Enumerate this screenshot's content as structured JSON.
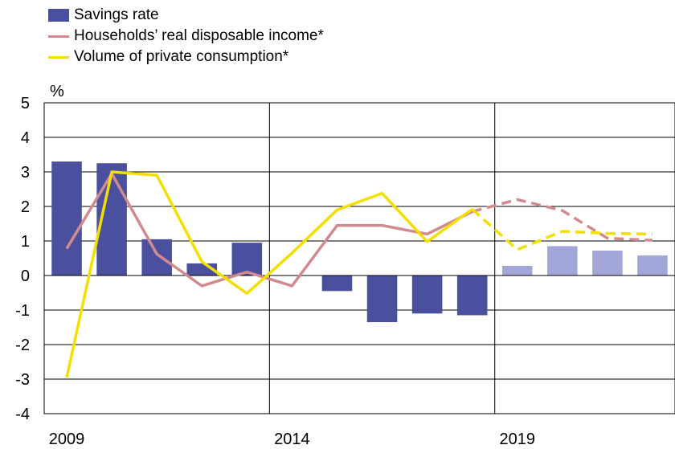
{
  "chart_data": {
    "type": "bar",
    "unit_label": "%",
    "ylim": [
      -4,
      5
    ],
    "yticks": [
      "5",
      "4",
      "3",
      "2",
      "1",
      "0",
      "-1",
      "-2",
      "-3",
      "-4"
    ],
    "x_labels": [
      {
        "year": 2009,
        "label": "2009"
      },
      {
        "year": 2014,
        "label": "2014"
      },
      {
        "year": 2019,
        "label": "2019"
      }
    ],
    "grid": {
      "vertical_at_years": [
        2014,
        2019
      ],
      "horizontal": true
    },
    "years": [
      2009,
      2010,
      2011,
      2012,
      2013,
      2014,
      2015,
      2016,
      2017,
      2018,
      2019,
      2020,
      2021,
      2022
    ],
    "forecast_from": 2019,
    "legend_position": "top-left",
    "series": [
      {
        "name": "Savings rate",
        "type": "bar",
        "color": "#4b509e",
        "forecast_color": "#a3a6d8",
        "values": [
          3.3,
          3.25,
          1.05,
          0.35,
          0.95,
          null,
          -0.45,
          -1.35,
          -1.1,
          -1.15,
          0.28,
          0.85,
          0.72,
          0.58
        ]
      },
      {
        "name": "Households’ real disposable income*",
        "type": "line",
        "color": "#d28a91",
        "values": [
          0.78,
          2.95,
          0.62,
          -0.3,
          0.1,
          -0.3,
          1.45,
          1.45,
          1.2,
          1.85,
          2.2,
          1.88,
          1.08,
          1.02
        ]
      },
      {
        "name": "Volume of private consumption*",
        "type": "line",
        "color": "#f3df00",
        "values": [
          -2.95,
          3.0,
          2.9,
          0.4,
          -0.52,
          0.65,
          1.9,
          2.38,
          0.98,
          1.92,
          0.75,
          1.28,
          1.22,
          1.2
        ]
      }
    ]
  }
}
